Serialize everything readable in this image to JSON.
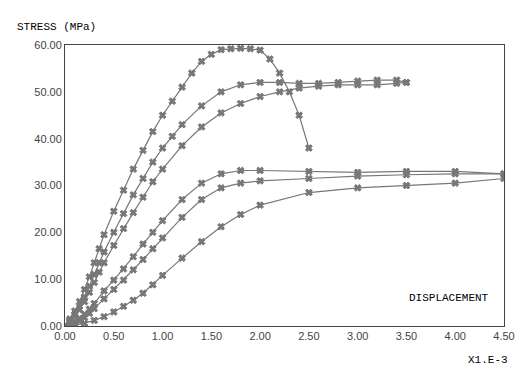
{
  "chart_data": {
    "type": "line",
    "ylabel": "STRESS (MPa)",
    "xlabel": "DISPLACEMENT",
    "annotations": [
      {
        "text": "X1.E-3"
      }
    ],
    "color": "#777777",
    "marker": "x",
    "grid": false,
    "xlim": [
      0.0,
      4.5
    ],
    "ylim": [
      0.0,
      60.0
    ],
    "xticks": [
      {
        "value": 0.0,
        "label": "0.00"
      },
      {
        "value": 0.5,
        "label": "0.50"
      },
      {
        "value": 1.0,
        "label": "1.00"
      },
      {
        "value": 1.5,
        "label": "1.50"
      },
      {
        "value": 2.0,
        "label": "2.00"
      },
      {
        "value": 2.5,
        "label": "2.50"
      },
      {
        "value": 3.0,
        "label": "3.00"
      },
      {
        "value": 3.5,
        "label": "3.50"
      },
      {
        "value": 4.0,
        "label": "4.00"
      },
      {
        "value": 4.5,
        "label": "4.50"
      }
    ],
    "yticks": [
      {
        "value": 0.0,
        "label": "0.00"
      },
      {
        "value": 10.0,
        "label": "10.00"
      },
      {
        "value": 20.0,
        "label": "20.00"
      },
      {
        "value": 30.0,
        "label": "30.00"
      },
      {
        "value": 40.0,
        "label": "40.00"
      },
      {
        "value": 50.0,
        "label": "50.00"
      },
      {
        "value": 60.0,
        "label": "60.00"
      }
    ],
    "series": [
      {
        "x": [
          0.0,
          0.05,
          0.1,
          0.15,
          0.2,
          0.25,
          0.3,
          0.35,
          0.4,
          0.5,
          0.6,
          0.7,
          0.8,
          0.9,
          1.0,
          1.1,
          1.2,
          1.3,
          1.4,
          1.5,
          1.6,
          1.7,
          1.8,
          1.9,
          2.0,
          2.1,
          2.2,
          2.3,
          2.4,
          2.5
        ],
        "values": [
          0.0,
          1.5,
          3.2,
          5.2,
          7.8,
          10.5,
          13.5,
          16.5,
          19.5,
          24.5,
          29.0,
          33.5,
          37.5,
          41.5,
          45.0,
          48.0,
          51.0,
          54.0,
          56.5,
          58.0,
          59.0,
          59.2,
          59.3,
          59.2,
          58.9,
          57.0,
          54.0,
          50.0,
          45.0,
          38.0
        ]
      },
      {
        "x": [
          0.0,
          0.05,
          0.1,
          0.15,
          0.2,
          0.25,
          0.3,
          0.35,
          0.4,
          0.5,
          0.6,
          0.7,
          0.8,
          0.9,
          1.0,
          1.1,
          1.2,
          1.4,
          1.6,
          1.8,
          2.0,
          2.2,
          2.4,
          2.6,
          2.8,
          3.0,
          3.2,
          3.4,
          3.5
        ],
        "values": [
          0.0,
          1.2,
          2.5,
          4.2,
          6.2,
          8.5,
          11.0,
          13.5,
          15.8,
          20.0,
          24.0,
          28.0,
          31.5,
          35.0,
          38.0,
          40.5,
          43.0,
          47.0,
          50.0,
          51.5,
          52.0,
          52.0,
          51.8,
          51.8,
          52.0,
          52.3,
          52.5,
          52.5,
          52.0
        ]
      },
      {
        "x": [
          0.0,
          0.05,
          0.1,
          0.15,
          0.2,
          0.25,
          0.3,
          0.35,
          0.4,
          0.5,
          0.6,
          0.7,
          0.8,
          0.9,
          1.0,
          1.2,
          1.4,
          1.6,
          1.8,
          2.0,
          2.2,
          2.4,
          2.6,
          2.8,
          3.0,
          3.2,
          3.4,
          3.5
        ],
        "values": [
          0.0,
          1.0,
          2.0,
          3.5,
          5.2,
          7.2,
          9.3,
          11.5,
          13.5,
          17.2,
          20.8,
          24.2,
          27.5,
          30.8,
          33.5,
          38.5,
          42.5,
          45.5,
          47.5,
          49.0,
          50.0,
          50.8,
          51.2,
          51.5,
          51.5,
          51.5,
          51.8,
          52.0
        ]
      },
      {
        "x": [
          0.0,
          0.05,
          0.1,
          0.15,
          0.2,
          0.25,
          0.3,
          0.4,
          0.5,
          0.6,
          0.7,
          0.8,
          0.9,
          1.0,
          1.2,
          1.4,
          1.6,
          1.8,
          2.0,
          2.5,
          3.0,
          3.5,
          4.0,
          4.5
        ],
        "values": [
          0.0,
          0.4,
          0.9,
          1.6,
          2.5,
          3.6,
          4.8,
          7.5,
          9.8,
          12.2,
          14.8,
          17.5,
          20.0,
          22.5,
          27.0,
          30.5,
          32.5,
          33.2,
          33.2,
          33.0,
          32.8,
          33.0,
          33.0,
          32.5
        ]
      },
      {
        "x": [
          0.0,
          0.05,
          0.1,
          0.15,
          0.2,
          0.25,
          0.3,
          0.4,
          0.5,
          0.6,
          0.7,
          0.8,
          0.9,
          1.0,
          1.2,
          1.4,
          1.6,
          1.8,
          2.0,
          2.5,
          3.0,
          3.5,
          4.0,
          4.5
        ],
        "values": [
          0.0,
          0.2,
          0.6,
          1.1,
          1.8,
          2.7,
          3.7,
          5.8,
          7.8,
          9.8,
          12.0,
          14.2,
          16.5,
          18.8,
          23.2,
          27.0,
          29.5,
          30.5,
          31.0,
          31.5,
          32.0,
          32.3,
          32.5,
          32.5
        ]
      },
      {
        "x": [
          0.0,
          0.1,
          0.2,
          0.3,
          0.4,
          0.5,
          0.6,
          0.7,
          0.8,
          0.9,
          1.0,
          1.2,
          1.4,
          1.6,
          1.8,
          2.0,
          2.5,
          3.0,
          3.5,
          4.0,
          4.5
        ],
        "values": [
          0.0,
          0.2,
          0.6,
          1.2,
          2.0,
          3.0,
          4.2,
          5.5,
          7.0,
          8.8,
          10.8,
          14.5,
          18.0,
          21.2,
          23.8,
          25.8,
          28.5,
          29.5,
          30.0,
          30.5,
          31.5
        ]
      }
    ]
  }
}
